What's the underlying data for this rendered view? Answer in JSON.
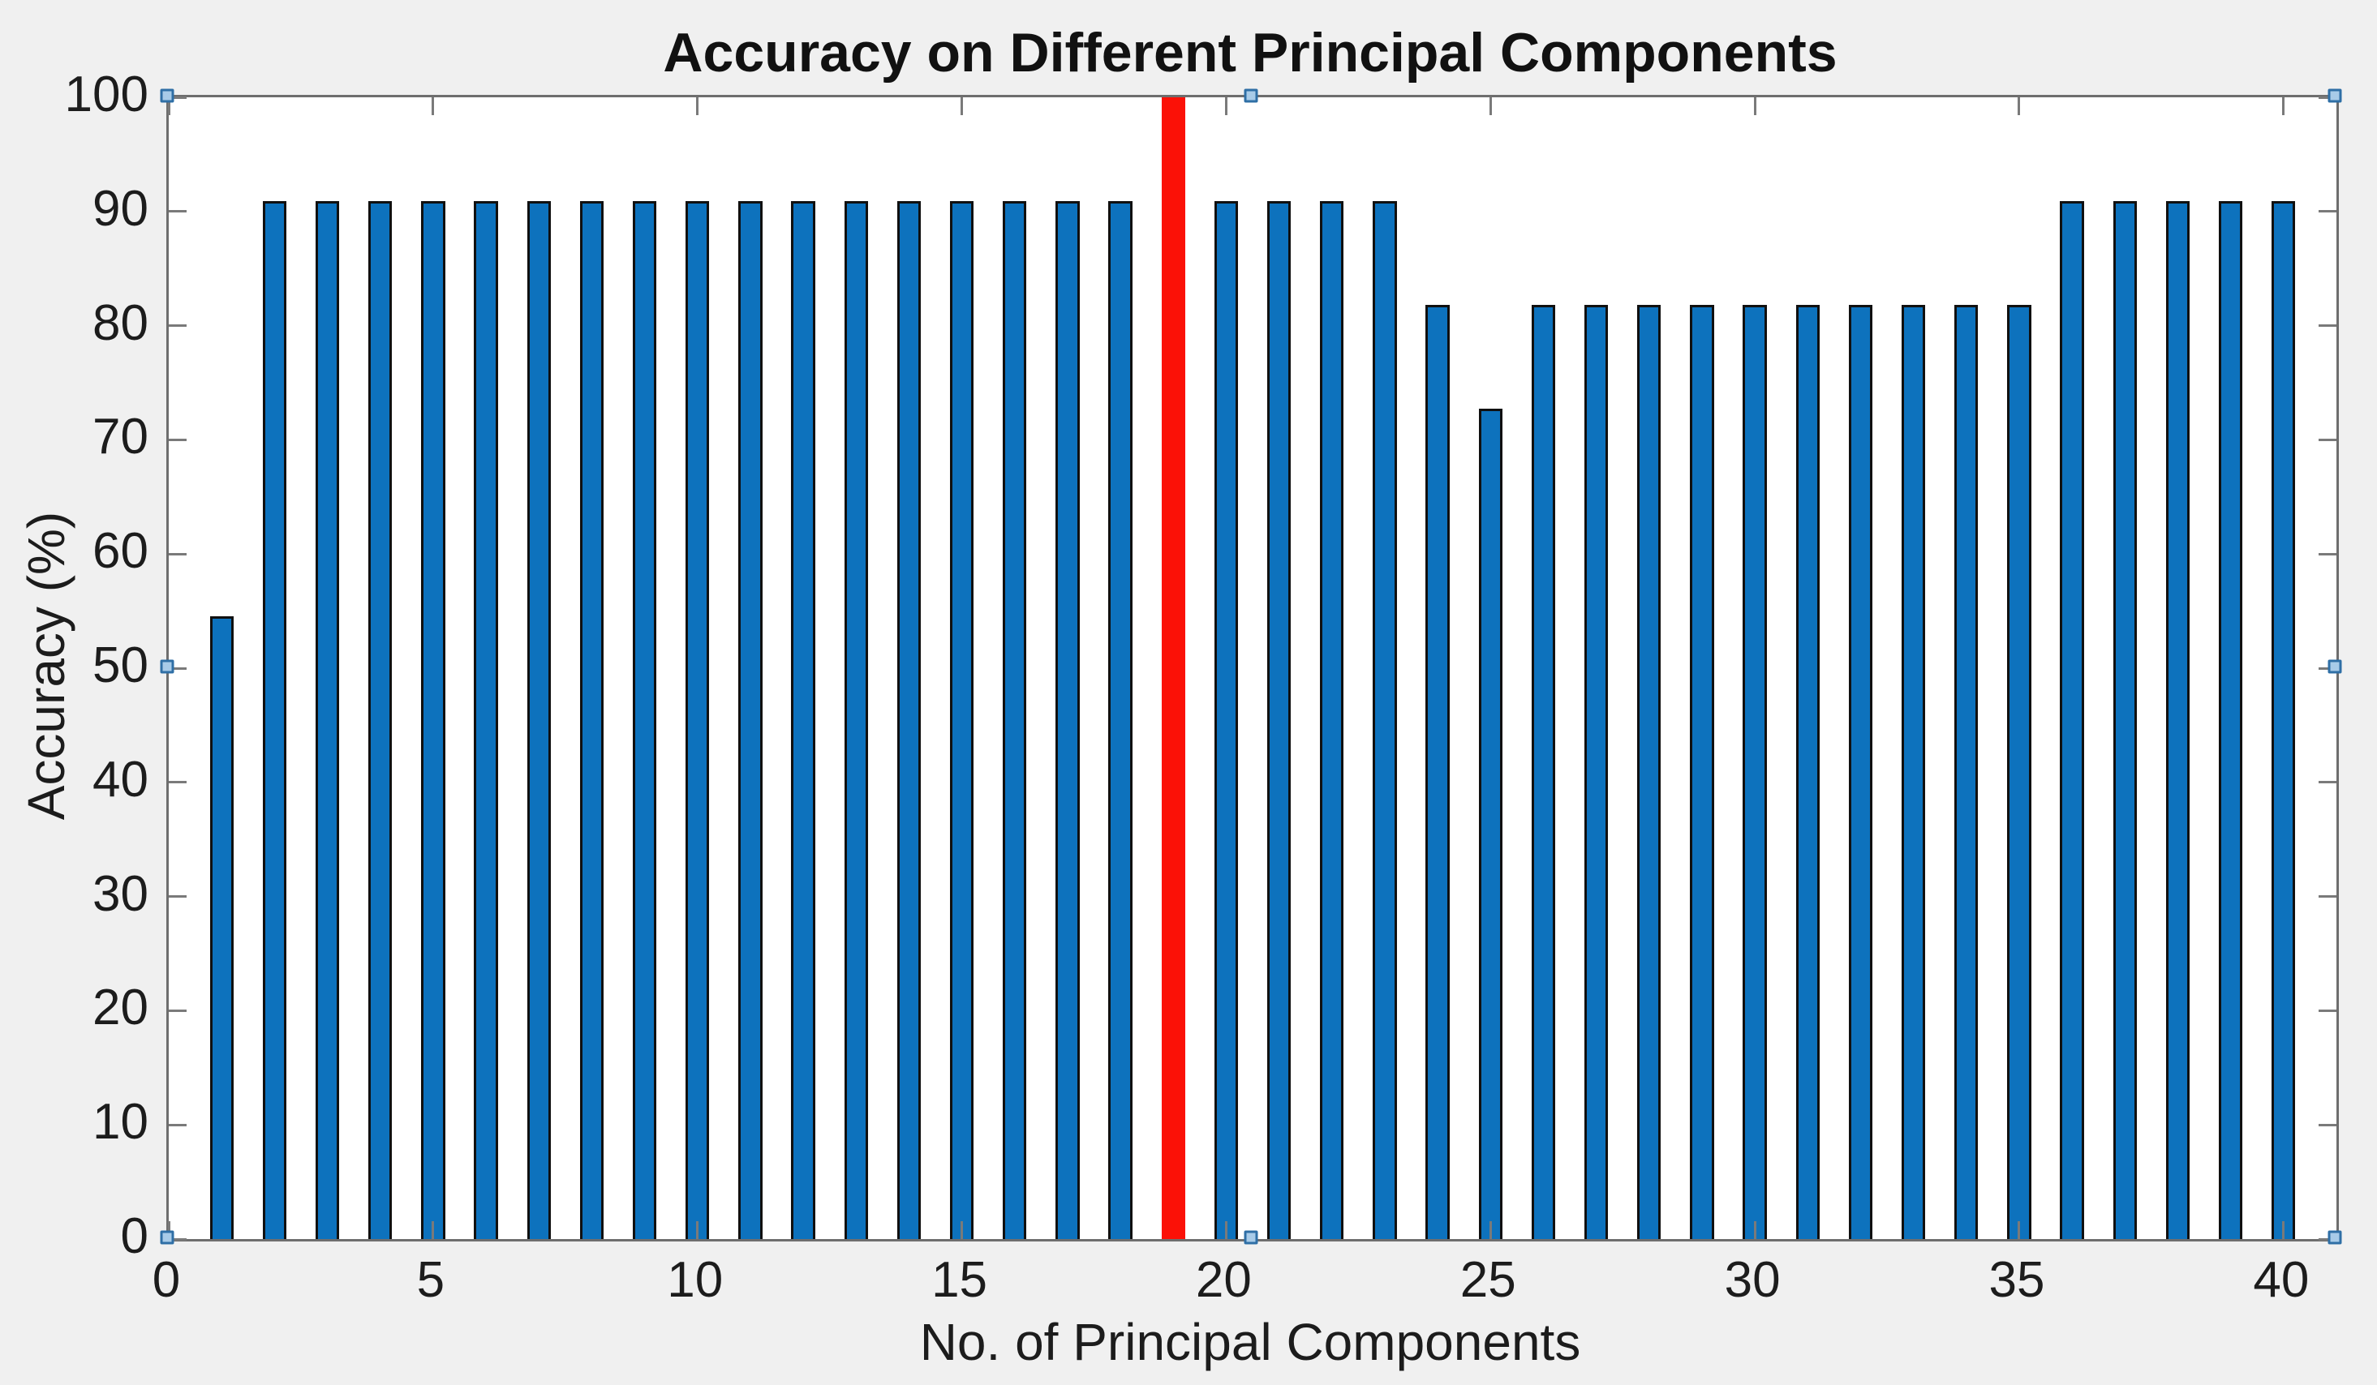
{
  "figure": {
    "background": "#f0f0f0",
    "plot_background": "#ffffff",
    "axis_box_color": "#6e6e6e",
    "tick_color": "#7a7a7a",
    "text_color": "#1c1c1c"
  },
  "chart_data": {
    "type": "bar",
    "title": "Accuracy on Different Principal Components",
    "xlabel": "No. of Principal Components",
    "ylabel": "Accuracy (%)",
    "xlim": [
      0,
      41
    ],
    "ylim": [
      0,
      100
    ],
    "xticks": [
      0,
      5,
      10,
      15,
      20,
      25,
      30,
      35,
      40
    ],
    "yticks": [
      0,
      10,
      20,
      30,
      40,
      50,
      60,
      70,
      80,
      90,
      100
    ],
    "grid": false,
    "legend": null,
    "bar_width_fraction": 0.45,
    "bar_face_color": "#0d72bd",
    "bar_edge_color": "#101010",
    "highlight_bar_color": "#fb1107",
    "highlight_x": 19,
    "x": [
      1,
      2,
      3,
      4,
      5,
      6,
      7,
      8,
      9,
      10,
      11,
      12,
      13,
      14,
      15,
      16,
      17,
      18,
      19,
      20,
      21,
      22,
      23,
      24,
      25,
      26,
      27,
      28,
      29,
      30,
      31,
      32,
      33,
      34,
      35,
      36,
      37,
      38,
      39,
      40
    ],
    "values": [
      54.55,
      90.91,
      90.91,
      90.91,
      90.91,
      90.91,
      90.91,
      90.91,
      90.91,
      90.91,
      90.91,
      90.91,
      90.91,
      90.91,
      90.91,
      90.91,
      90.91,
      90.91,
      100,
      90.91,
      90.91,
      90.91,
      90.91,
      81.82,
      72.73,
      81.82,
      81.82,
      81.82,
      81.82,
      81.82,
      81.82,
      81.82,
      81.82,
      81.82,
      81.82,
      90.91,
      90.91,
      90.91,
      90.91,
      90.91
    ]
  },
  "selection_handles": {
    "fill": "#a8cbe8",
    "border": "#2f6fa6",
    "positions": [
      "top-left",
      "top-center",
      "top-right",
      "mid-left",
      "mid-right",
      "bottom-left",
      "bottom-center",
      "bottom-right"
    ]
  }
}
